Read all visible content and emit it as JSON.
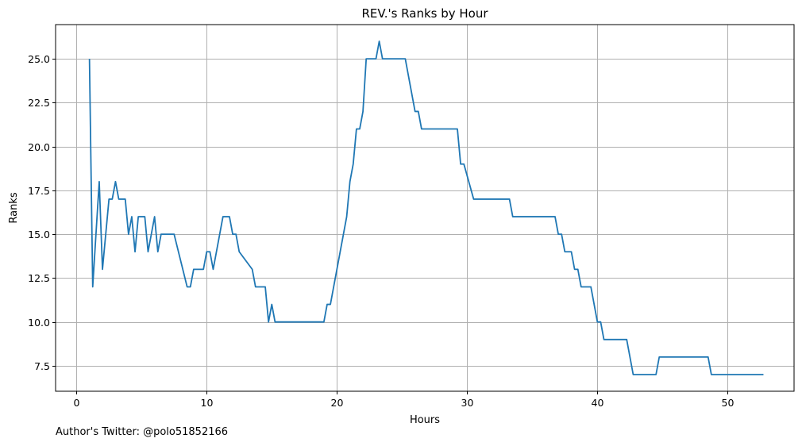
{
  "footnote": "Author's Twitter: @polo51852166",
  "chart_data": {
    "type": "line",
    "title": "REV.'s Ranks by Hour",
    "xlabel": "Hours",
    "ylabel": "Ranks",
    "xlim": [
      -1.6,
      55.1
    ],
    "ylim": [
      6.05,
      26.95
    ],
    "grid": true,
    "xticks": [
      0,
      10,
      20,
      30,
      40,
      50
    ],
    "xtick_labels": [
      "0",
      "10",
      "20",
      "30",
      "40",
      "50"
    ],
    "yticks": [
      7.5,
      10.0,
      12.5,
      15.0,
      17.5,
      20.0,
      22.5,
      25.0
    ],
    "ytick_labels": [
      "7.5",
      "10.0",
      "12.5",
      "15.0",
      "17.5",
      "20.0",
      "22.5",
      "25.0"
    ],
    "line_color": "#1f77b4",
    "series": [
      {
        "x": [
          1.0,
          1.25,
          1.75,
          2.0,
          2.5,
          2.75,
          3.0,
          3.25,
          3.75,
          4.0,
          4.25,
          4.5,
          4.75,
          5.25,
          5.5,
          6.0,
          6.25,
          6.5,
          7.5,
          8.5,
          8.75,
          9.0,
          9.75,
          10.0,
          10.25,
          10.5,
          11.25,
          11.75,
          12.0,
          12.25,
          12.5,
          13.5,
          13.75,
          14.5,
          14.75,
          15.0,
          15.25,
          19.0,
          19.25,
          19.5,
          20.75,
          21.0,
          21.25,
          21.5,
          21.75,
          22.0,
          22.25,
          23.0,
          23.25,
          23.5,
          25.25,
          26.0,
          26.25,
          26.5,
          29.25,
          29.5,
          29.75,
          30.5,
          33.25,
          33.5,
          36.75,
          37.0,
          37.25,
          37.5,
          38.0,
          38.25,
          38.5,
          38.75,
          39.5,
          40.0,
          40.25,
          40.5,
          42.25,
          42.75,
          44.5,
          44.75,
          48.5,
          48.75,
          52.75
        ],
        "y": [
          25,
          12,
          18,
          13,
          17,
          17,
          18,
          17,
          17,
          15,
          16,
          14,
          16,
          16,
          14,
          16,
          14,
          15,
          15,
          12,
          12,
          13,
          13,
          14,
          14,
          13,
          16,
          16,
          15,
          15,
          14,
          13,
          12,
          12,
          10,
          11,
          10,
          10,
          11,
          11,
          16,
          18,
          19,
          21,
          21,
          22,
          25,
          25,
          26,
          25,
          25,
          22,
          22,
          21,
          21,
          19,
          19,
          17,
          17,
          16,
          16,
          15,
          15,
          14,
          14,
          13,
          13,
          12,
          12,
          10,
          10,
          9,
          9,
          7,
          7,
          8,
          8,
          7,
          7
        ]
      }
    ]
  }
}
